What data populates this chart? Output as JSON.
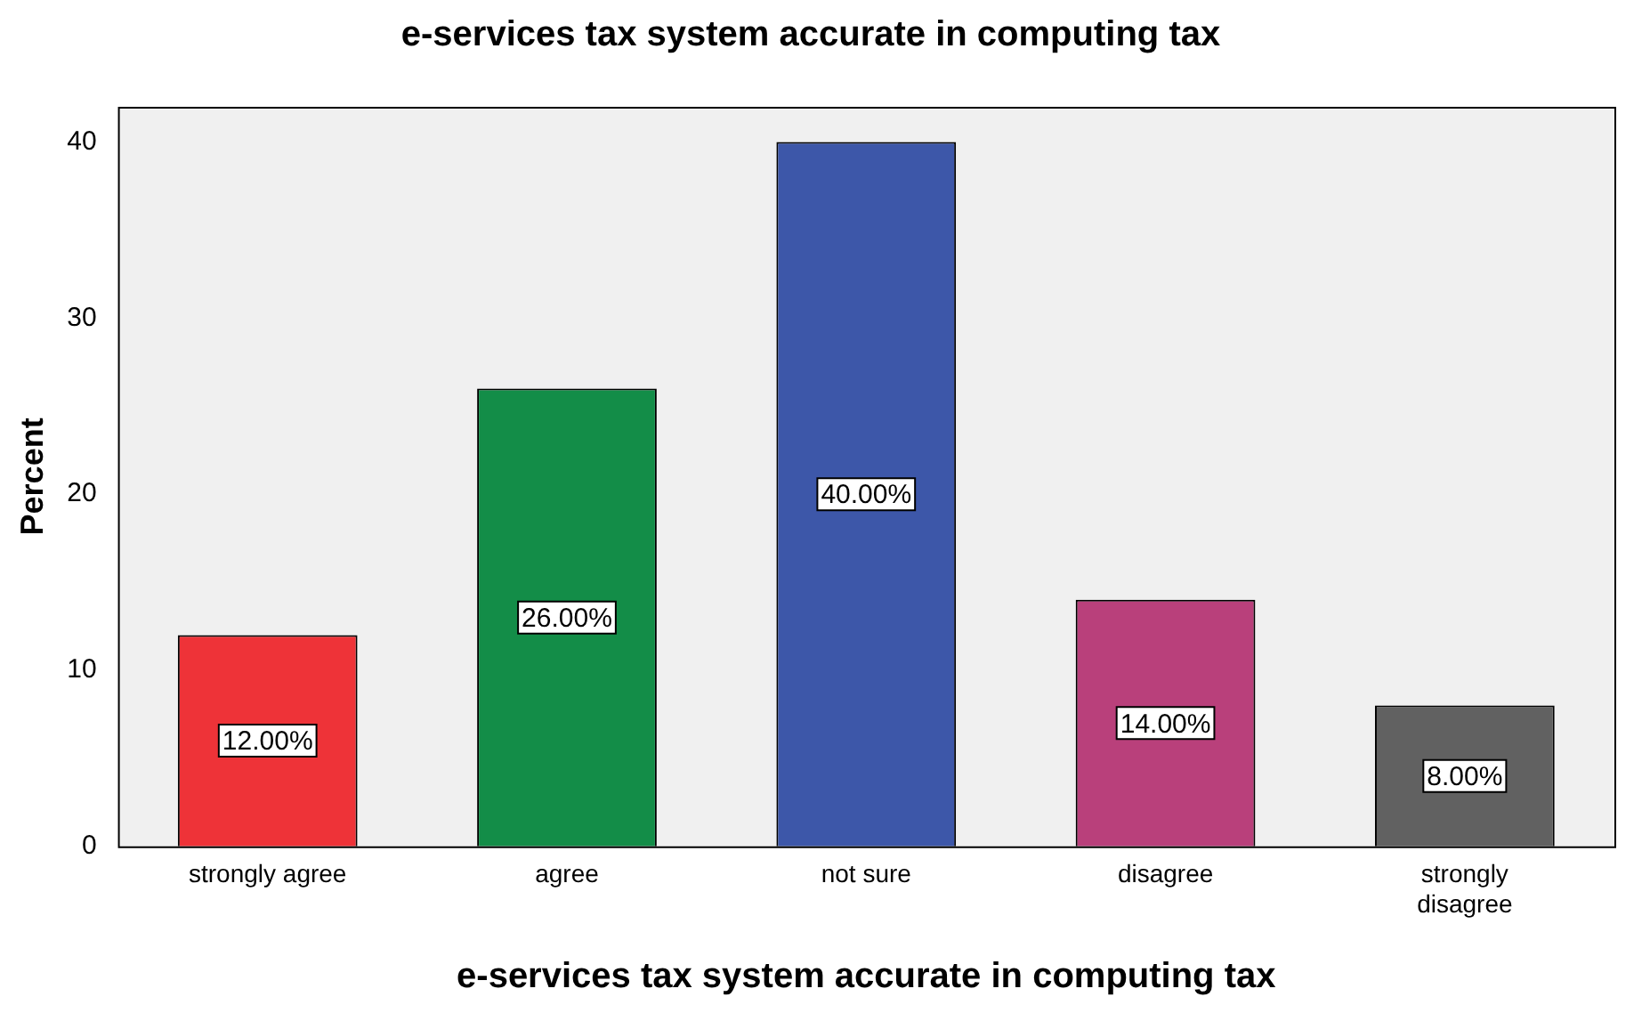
{
  "chart_data": {
    "type": "bar",
    "title": "e-services tax system accurate in computing tax",
    "xlabel": "e-services tax system accurate in computing tax",
    "ylabel": "Percent",
    "categories": [
      "strongly agree",
      "agree",
      "not sure",
      "disagree",
      "strongly disagree"
    ],
    "values": [
      12,
      26,
      40,
      14,
      8
    ],
    "colors": [
      "#ee3338",
      "#138d48",
      "#3d57a9",
      "#b9407b",
      "#616161"
    ],
    "value_labels": [
      "12.00%",
      "26.00%",
      "40.00%",
      "14.00%",
      "8.00%"
    ],
    "ylim": [
      0,
      42
    ],
    "yticks": [
      0,
      10,
      20,
      30,
      40
    ],
    "grid": false,
    "legend": false
  }
}
